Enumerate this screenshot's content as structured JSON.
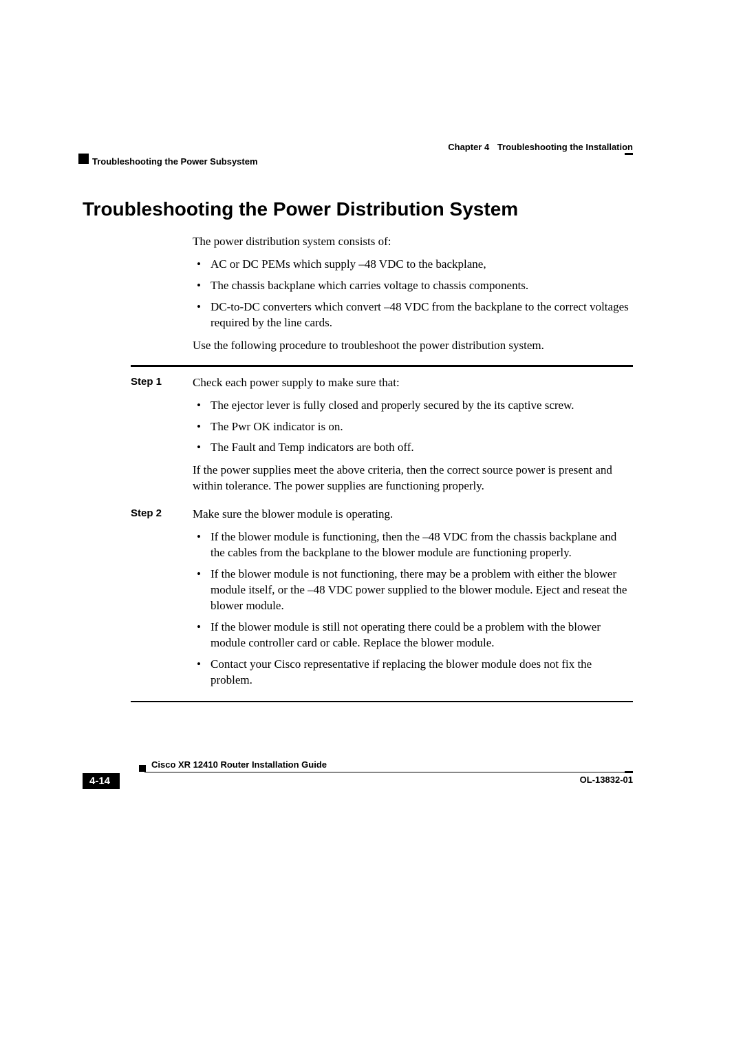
{
  "header": {
    "chapter_label": "Chapter 4",
    "chapter_title": "Troubleshooting the Installation",
    "section_running": "Troubleshooting the Power Subsystem"
  },
  "section": {
    "title": "Troubleshooting the Power Distribution System",
    "intro": "The power distribution system consists of:",
    "intro_bullets": [
      "AC or DC PEMs which supply –48 VDC to the backplane,",
      "The chassis backplane which carries voltage to chassis components.",
      "DC-to-DC converters which convert –48 VDC from the backplane to the correct voltages required by the line cards."
    ],
    "lead_out": "Use the following procedure to troubleshoot the power distribution system."
  },
  "steps": [
    {
      "label": "Step 1",
      "text": "Check each power supply to make sure that:",
      "bullets": [
        "The ejector lever is fully closed and properly secured by the its captive screw.",
        "The Pwr OK indicator is on.",
        "The Fault and Temp indicators are both off."
      ],
      "after": "If the power supplies meet the above criteria, then the correct source power is present and within tolerance. The power supplies are functioning properly."
    },
    {
      "label": "Step 2",
      "text": "Make sure the blower module is operating.",
      "bullets": [
        "If the blower module is functioning, then the –48 VDC from the chassis backplane and the cables from the backplane to the blower module are functioning properly.",
        "If the blower module is not functioning, there may be a problem with either the blower module itself, or the –48 VDC power supplied to the blower module. Eject and reseat the blower module.",
        "If the blower module is still not operating there could be a problem with the blower module controller card or cable. Replace the blower module.",
        "Contact your Cisco representative if replacing the blower module does not fix the problem."
      ],
      "after": ""
    }
  ],
  "footer": {
    "guide_title": "Cisco XR 12410 Router Installation Guide",
    "page_number": "4-14",
    "doc_id": "OL-13832-01"
  }
}
